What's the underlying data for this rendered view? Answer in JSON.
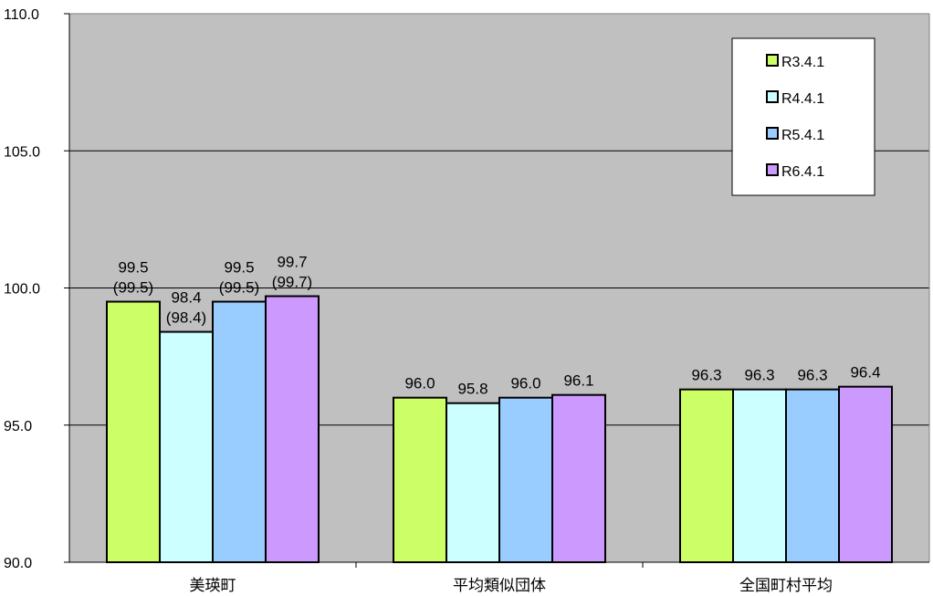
{
  "chart_data": {
    "type": "bar",
    "title": "",
    "xlabel": "",
    "ylabel": "",
    "ylim": [
      90.0,
      110.0
    ],
    "yticks": [
      "90.0",
      "95.0",
      "100.0",
      "105.0",
      "110.0"
    ],
    "grid": true,
    "legend_position": "top-right",
    "categories": [
      "美瑛町",
      "平均類似団体",
      "全国町村平均"
    ],
    "series": [
      {
        "name": "R3.4.1",
        "color": "#ccff66",
        "values": [
          99.5,
          96.0,
          96.3
        ],
        "labels": [
          "99.5\n(99.5)",
          "96.0",
          "96.3"
        ]
      },
      {
        "name": "R4.4.1",
        "color": "#ccffff",
        "values": [
          98.4,
          95.8,
          96.3
        ],
        "labels": [
          "98.4\n(98.4)",
          "95.8",
          "96.3"
        ]
      },
      {
        "name": "R5.4.1",
        "color": "#99ccff",
        "values": [
          99.5,
          96.0,
          96.3
        ],
        "labels": [
          "99.5\n(99.5)",
          "96.0",
          "96.3"
        ]
      },
      {
        "name": "R6.4.1",
        "color": "#cc99ff",
        "values": [
          99.7,
          96.1,
          96.4
        ],
        "labels": [
          "99.7\n(99.7)",
          "96.1",
          "96.4"
        ]
      }
    ],
    "plot_background": "#c0c0c0"
  }
}
